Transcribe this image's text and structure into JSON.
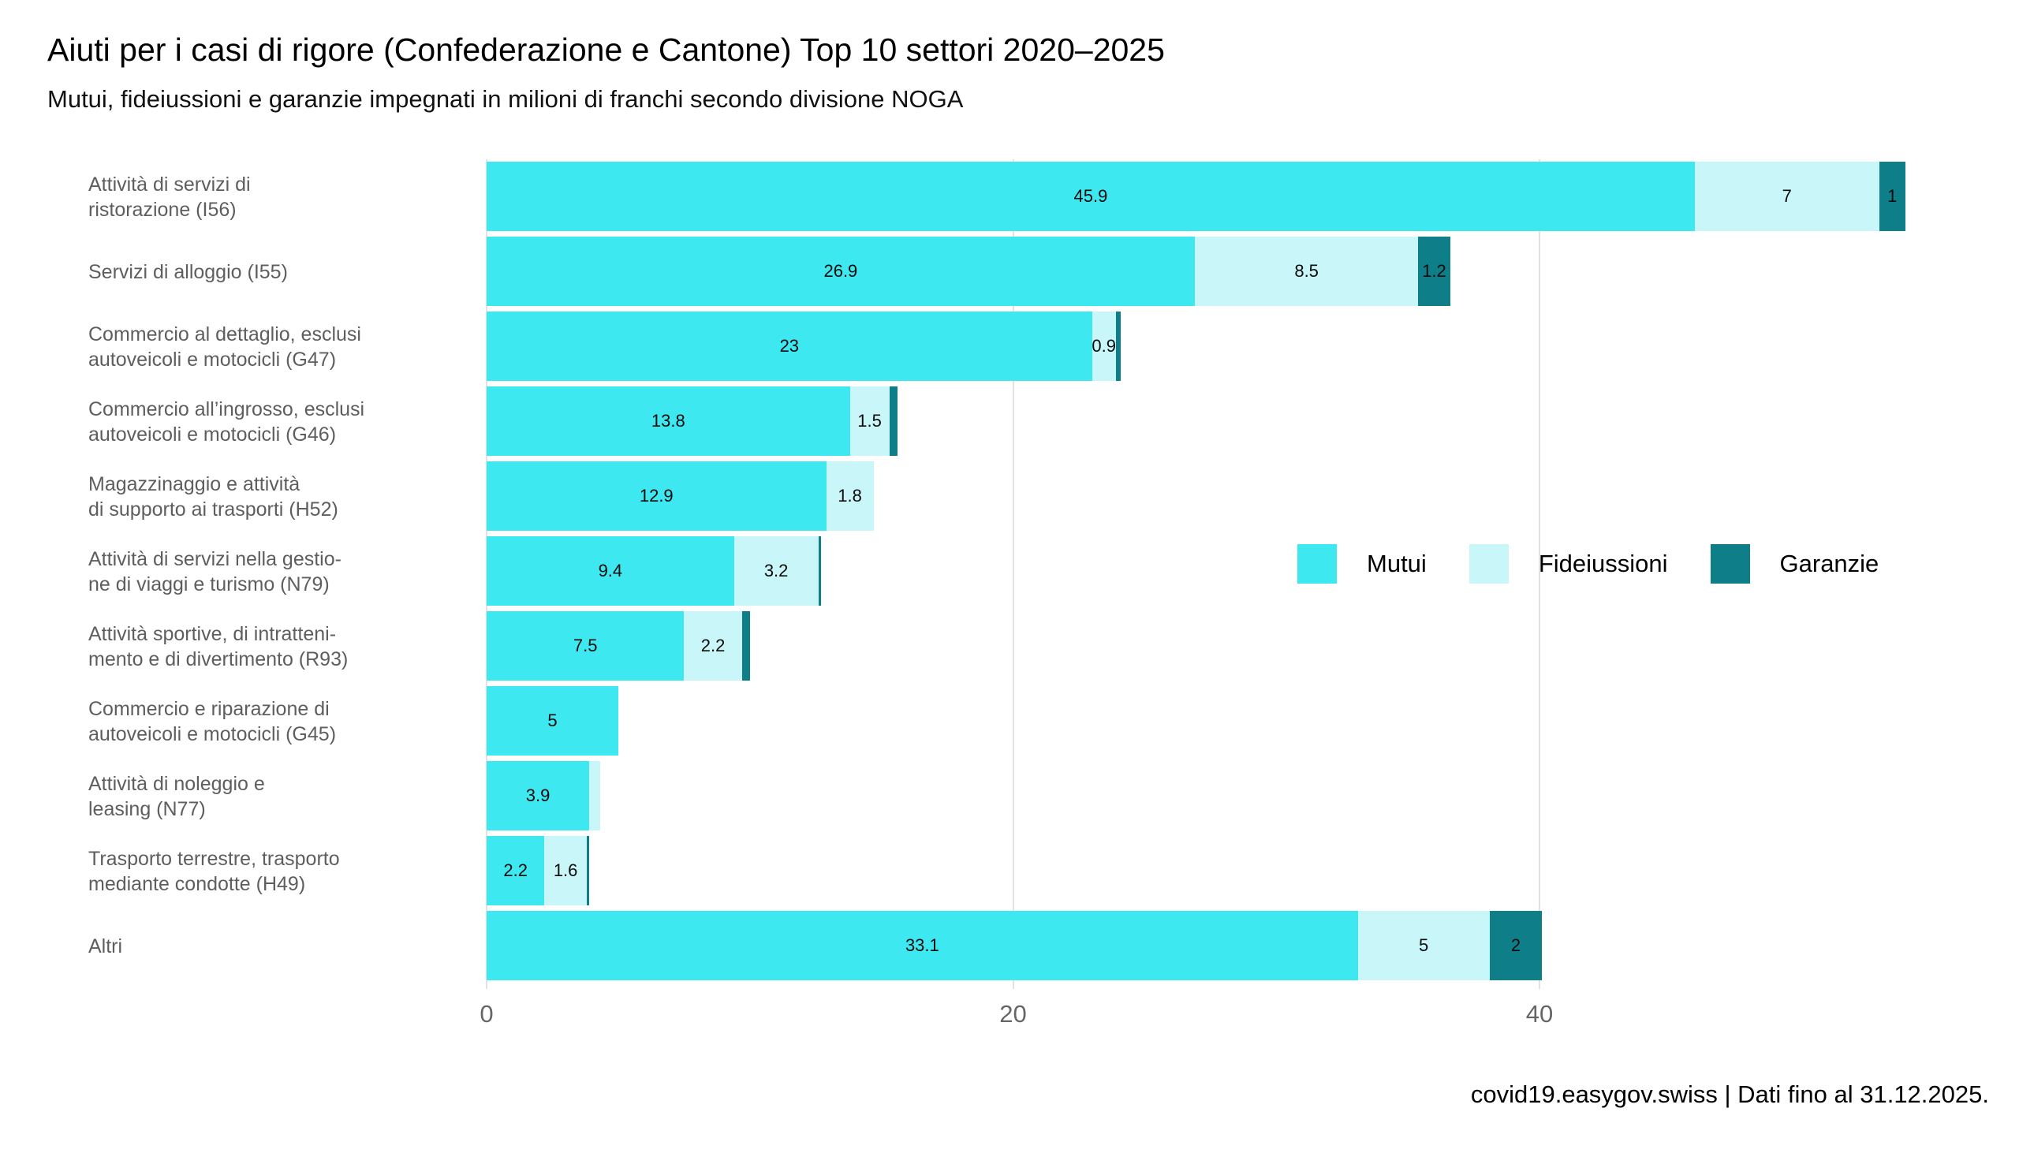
{
  "title": "Aiuti per i casi di rigore (Confederazione e Cantone) Top 10 settori 2020–2025",
  "subtitle": "Mutui, fideiussioni e garanzie impegnati in milioni di franchi secondo divisione NOGA",
  "footer": "covid19.easygov.swiss | Dati fino al 31.12.2025.",
  "chart_data": {
    "type": "bar",
    "orientation": "horizontal",
    "stacked": true,
    "title": "Aiuti per i casi di rigore (Confederazione e Cantone) Top 10 settori 2020–2025",
    "subtitle": "Mutui, fideiussioni e garanzie impegnati in milioni di franchi secondo divisione NOGA",
    "xlabel": "",
    "ylabel": "",
    "x_axis": {
      "ticks": [
        0,
        20,
        40
      ],
      "range": [
        0,
        54
      ],
      "gridlines": true,
      "gridline_color": "#e2e2e2"
    },
    "legend_position": "middle-right",
    "categories": [
      "Attività di servizi di\nristorazione (I56)",
      "Servizi di alloggio (I55)",
      "Commercio al dettaglio, esclusi\nautoveicoli e motocicli (G47)",
      "Commercio all’ingrosso, esclusi\nautoveicoli e motocicli (G46)",
      "Magazzinaggio e attività\ndi supporto ai trasporti (H52)",
      "Attività di servizi nella gestio-\nne di viaggi e turismo (N79)",
      "Attività sportive, di intratteni-\nmento e di divertimento (R93)",
      "Commercio e riparazione di\nautoveicoli e motocicli (G45)",
      "Attività di noleggio e\nleasing (N77)",
      "Trasporto terrestre, trasporto\nmediante condotte (H49)",
      "Altri"
    ],
    "series": [
      {
        "name": "Mutui",
        "color": "#3DE8F0",
        "values": [
          45.9,
          26.9,
          23,
          13.8,
          12.9,
          9.4,
          7.5,
          5,
          3.9,
          2.2,
          33.1
        ]
      },
      {
        "name": "Fideiussioni",
        "color": "#C9F7F9",
        "values": [
          7,
          8.5,
          0.9,
          1.5,
          1.8,
          3.2,
          2.2,
          0,
          0.4,
          1.6,
          5
        ]
      },
      {
        "name": "Garanzie",
        "color": "#0E7E89",
        "values": [
          1,
          1.2,
          0.2,
          0.3,
          0,
          0.1,
          0.3,
          0,
          0,
          0.1,
          2
        ]
      }
    ],
    "shown_labels": [
      [
        "45.9",
        "7",
        "1"
      ],
      [
        "26.9",
        "8.5",
        "1.2"
      ],
      [
        "23",
        "0.9",
        ""
      ],
      [
        "13.8",
        "1.5",
        ""
      ],
      [
        "12.9",
        "1.8",
        ""
      ],
      [
        "9.4",
        "3.2",
        ""
      ],
      [
        "7.5",
        "2.2",
        ""
      ],
      [
        "5",
        "",
        ""
      ],
      [
        "3.9",
        "",
        ""
      ],
      [
        "2.2",
        "1.6",
        ""
      ],
      [
        "33.1",
        "5",
        "2"
      ]
    ]
  }
}
